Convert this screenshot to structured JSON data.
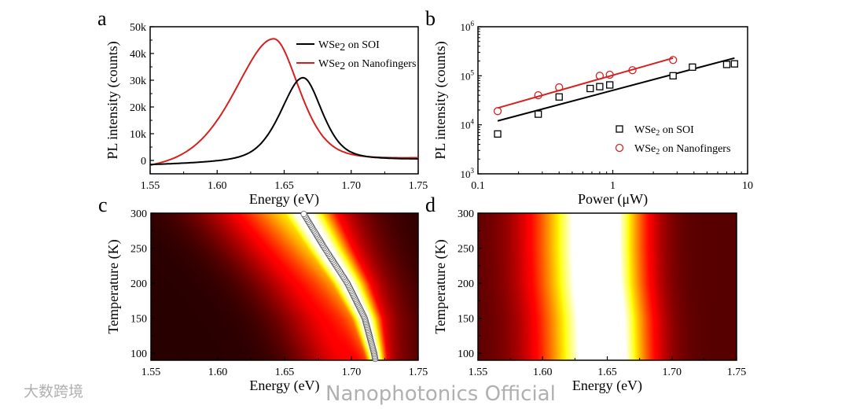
{
  "chart_data": [
    {
      "panel": "a",
      "type": "line",
      "xlabel": "Energy (eV)",
      "ylabel": "PL intensity (counts)",
      "xlim": [
        1.55,
        1.75
      ],
      "ylim": [
        -5000,
        50000
      ],
      "xticks": [
        "1.55",
        "1.60",
        "1.65",
        "1.70",
        "1.75"
      ],
      "yticks": [
        "0",
        "10k",
        "20k",
        "30k",
        "40k",
        "50k"
      ],
      "legend": "top-right",
      "series": [
        {
          "name": "WSe2 on SOI",
          "name_base": "WSe",
          "name_sub": "2",
          "name_rest": " on SOI",
          "color": "#000000",
          "model": "asymmetric pseudo-Voigt",
          "peak_energy": 1.664,
          "peak_intensity": 30000,
          "hw_left": 0.02,
          "hw_right": 0.017,
          "amplitude": 31800,
          "offset_start": -2000,
          "offset_end": 0
        },
        {
          "name": "WSe2 on Nanofingers",
          "name_base": "WSe",
          "name_sub": "2",
          "name_rest": " on Nanofingers",
          "color": "#d62020",
          "model": "asymmetric pseudo-Voigt",
          "peak_energy": 1.642,
          "peak_intensity": 45500,
          "hw_left": 0.035,
          "hw_right": 0.023,
          "amplitude": 48200,
          "offset_start": -5000,
          "offset_end": 0
        }
      ]
    },
    {
      "panel": "b",
      "type": "scatter",
      "xlabel": "Power (μW)",
      "ylabel": "PL intensity (counts)",
      "xscale": "log",
      "yscale": "log",
      "xlim": [
        0.1,
        10
      ],
      "ylim": [
        1000,
        1000000
      ],
      "xticks": [
        "0.1",
        "1",
        "10"
      ],
      "yticks": [
        {
          "base": "10",
          "exp": "3"
        },
        {
          "base": "10",
          "exp": "4"
        },
        {
          "base": "10",
          "exp": "5"
        },
        {
          "base": "10",
          "exp": "6"
        }
      ],
      "legend": "bottom-right",
      "series": [
        {
          "name": "WSe2 on SOI",
          "name_base": "WSe",
          "name_sub": "2",
          "name_rest": " on SOI",
          "marker": "square",
          "color": "#000000",
          "x": [
            0.14,
            0.28,
            0.4,
            0.68,
            0.8,
            0.95,
            2.8,
            3.9,
            7.0,
            8.0
          ],
          "y": [
            6500,
            16500,
            37000,
            55000,
            60000,
            65000,
            100000,
            150000,
            170000,
            175000
          ],
          "fit": {
            "x": [
              0.14,
              8.0
            ],
            "y": [
              12000,
              230000
            ]
          }
        },
        {
          "name": "WSe2 on Nanofingers",
          "name_base": "WSe",
          "name_sub": "2",
          "name_rest": " on Nanofingers",
          "marker": "circle",
          "color": "#d62020",
          "x": [
            0.14,
            0.28,
            0.4,
            0.8,
            0.95,
            1.4,
            2.8
          ],
          "y": [
            19000,
            40000,
            58000,
            100000,
            105000,
            130000,
            210000
          ],
          "fit": {
            "x": [
              0.14,
              2.8
            ],
            "y": [
              22000,
              230000
            ]
          }
        }
      ]
    },
    {
      "panel": "c",
      "type": "heatmap",
      "xlabel": "Energy (eV)",
      "ylabel": "Temperature (K)",
      "xlim": [
        1.55,
        1.75
      ],
      "ylim": [
        90,
        300
      ],
      "xticks": [
        "1.55",
        "1.60",
        "1.65",
        "1.70",
        "1.75"
      ],
      "yticks": [
        "100",
        "150",
        "200",
        "250",
        "300"
      ],
      "colormap": "hot",
      "peak_positions": {
        "temperature": [
          90,
          100,
          150,
          200,
          250,
          300
        ],
        "energy": [
          1.718,
          1.717,
          1.71,
          1.697,
          1.68,
          1.664
        ]
      }
    },
    {
      "panel": "d",
      "type": "heatmap",
      "xlabel": "Energy (eV)",
      "ylabel": "Temperature (K)",
      "xlim": [
        1.55,
        1.75
      ],
      "ylim": [
        90,
        300
      ],
      "xticks": [
        "1.55",
        "1.60",
        "1.65",
        "1.70",
        "1.75"
      ],
      "yticks": [
        "100",
        "150",
        "200",
        "250",
        "300"
      ],
      "colormap": "hot",
      "peak_positions": {
        "temperature": [
          90,
          150,
          200,
          250,
          300
        ],
        "energy": [
          1.649,
          1.648,
          1.645,
          1.644,
          1.644
        ]
      }
    }
  ],
  "watermarks": {
    "left": "大数跨境",
    "right": "Nanophotonics Official"
  }
}
